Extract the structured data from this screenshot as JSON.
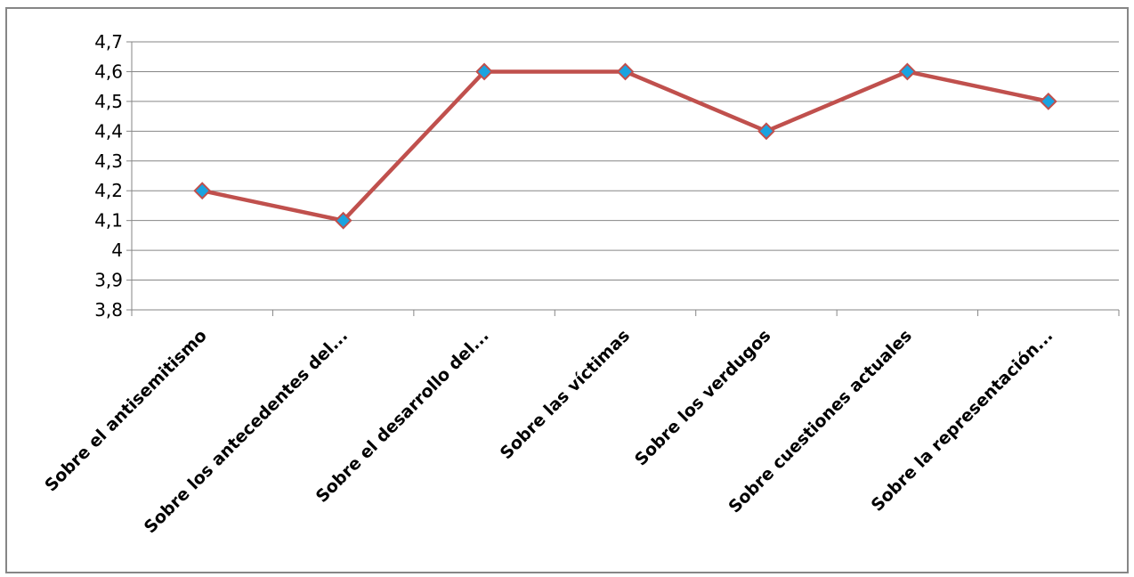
{
  "chart_data": {
    "type": "line",
    "title": "",
    "xlabel": "",
    "ylabel": "",
    "categories": [
      "Sobre el antisemitismo",
      "Sobre los antecedentes del...",
      "Sobre el desarrollo del...",
      "Sobre las víctimas",
      "Sobre los verdugos",
      "Sobre cuestiones actuales",
      "Sobre la representación..."
    ],
    "series": [
      {
        "values": [
          4.2,
          4.1,
          4.6,
          4.6,
          4.4,
          4.6,
          4.5
        ]
      }
    ],
    "ylim": [
      3.8,
      4.7
    ],
    "yticks": [
      3.8,
      3.9,
      4.0,
      4.1,
      4.2,
      4.3,
      4.4,
      4.5,
      4.6,
      4.7
    ],
    "ytick_labels": [
      "3,8",
      "3,9",
      "4",
      "4,1",
      "4,2",
      "4,3",
      "4,4",
      "4,5",
      "4,6",
      "4,7"
    ],
    "grid": true,
    "legend": "none",
    "colors": {
      "line": "#c0504d",
      "marker_fill": "#1aa3e0",
      "marker_stroke": "#c0504d",
      "grid": "#868686",
      "frame": "#868686"
    }
  }
}
